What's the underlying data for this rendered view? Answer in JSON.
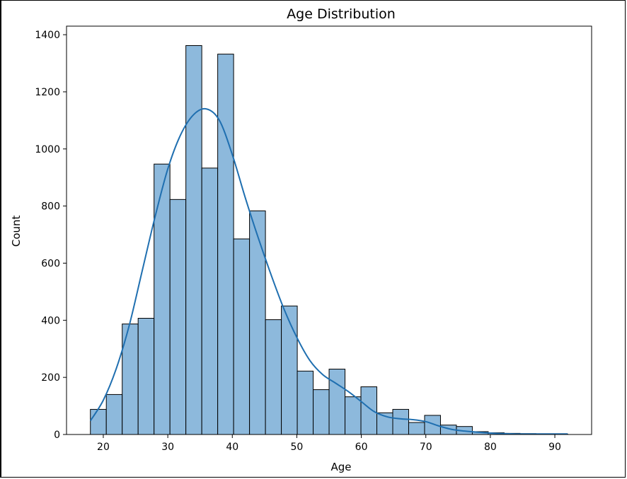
{
  "chart_data": {
    "type": "bar",
    "title": "Age Distribution",
    "xlabel": "Age",
    "ylabel": "Count",
    "xlim": [
      14.3,
      95.7
    ],
    "ylim": [
      0,
      1430
    ],
    "x_ticks": [
      20,
      30,
      40,
      50,
      60,
      70,
      80,
      90
    ],
    "y_ticks": [
      0,
      200,
      400,
      600,
      800,
      1000,
      1200,
      1400
    ],
    "bin_start": 18,
    "bin_width": 2.467,
    "values": [
      88,
      140,
      387,
      407,
      947,
      823,
      1362,
      933,
      1332,
      685,
      783,
      402,
      450,
      222,
      157,
      229,
      132,
      167,
      76,
      88,
      42,
      67,
      33,
      28,
      10,
      6,
      4,
      3,
      2,
      1
    ],
    "bar_color": "#8db9dc",
    "edge_color": "#000000",
    "kde": {
      "color": "#1f6fb0",
      "x": [
        18,
        20,
        22,
        24,
        26,
        28,
        30,
        32,
        34,
        36,
        38,
        40,
        42,
        44,
        46,
        48,
        50,
        52,
        54,
        56,
        58,
        60,
        62,
        64,
        66,
        68,
        70,
        72,
        74,
        76,
        78,
        80,
        82,
        84,
        86,
        88,
        90,
        92
      ],
      "y": [
        48,
        120,
        230,
        380,
        570,
        760,
        930,
        1050,
        1120,
        1140,
        1100,
        980,
        830,
        690,
        560,
        440,
        340,
        260,
        210,
        180,
        150,
        115,
        80,
        62,
        55,
        52,
        45,
        30,
        18,
        12,
        8,
        5,
        3,
        2,
        2,
        2,
        2,
        2
      ]
    },
    "grid": false,
    "legend": "none"
  }
}
